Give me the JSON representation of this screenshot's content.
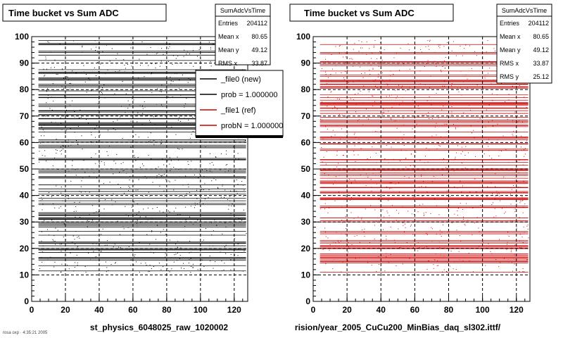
{
  "footer": "rosa oxp · 4:35:21 2005",
  "chart_data": [
    {
      "type": "heatmap",
      "title": "Time bucket vs Sum ADC",
      "xlabel": "st_physics_6048025_raw_1020002",
      "ylabel": "",
      "xlim": [
        0,
        128
      ],
      "ylim": [
        0,
        100
      ],
      "xticks": [
        0,
        20,
        40,
        60,
        80,
        100,
        120
      ],
      "yticks": [
        0,
        10,
        20,
        30,
        40,
        50,
        60,
        70,
        80,
        90,
        100
      ],
      "grid": true,
      "point_color": "#000000",
      "density_region": {
        "x": [
          4,
          127
        ],
        "y": [
          11,
          99
        ]
      },
      "stats": {
        "name": "SumAdcVsTime",
        "rows": [
          {
            "label": "Entries",
            "value": "204112"
          },
          {
            "label": "Mean x",
            "value": "80.65"
          },
          {
            "label": "Mean y",
            "value": "49.12"
          },
          {
            "label": "RMS x",
            "value": "33.87"
          }
        ]
      },
      "legend": {
        "placement": "top-right",
        "entries": [
          {
            "label": "_file0 (new)",
            "color": "#000000"
          },
          {
            "label": "prob = 1.000000",
            "color": "#000000"
          },
          {
            "label": "_file1 (ref)",
            "color": "#cc0000"
          },
          {
            "label": "probN = 1.000000",
            "color": "#cc0000"
          }
        ]
      }
    },
    {
      "type": "heatmap",
      "title": "Time bucket vs Sum ADC",
      "xlabel": "rision/year_2005_CuCu200_MinBias_daq_sl302.ittf/",
      "ylabel": "",
      "xlim": [
        0,
        128
      ],
      "ylim": [
        0,
        100
      ],
      "xticks": [
        0,
        20,
        40,
        60,
        80,
        100,
        120
      ],
      "yticks": [
        0,
        10,
        20,
        30,
        40,
        50,
        60,
        70,
        80,
        90,
        100
      ],
      "grid": true,
      "point_color": "#cc0000",
      "density_region": {
        "x": [
          4,
          127
        ],
        "y": [
          11,
          99
        ]
      },
      "stats": {
        "name": "SumAdcVsTime",
        "rows": [
          {
            "label": "Entries",
            "value": "204112"
          },
          {
            "label": "Mean x",
            "value": "80.65"
          },
          {
            "label": "Mean y",
            "value": "49.12"
          },
          {
            "label": "RMS x",
            "value": "33.87"
          },
          {
            "label": "RMS y",
            "value": "25.12"
          }
        ]
      }
    }
  ]
}
